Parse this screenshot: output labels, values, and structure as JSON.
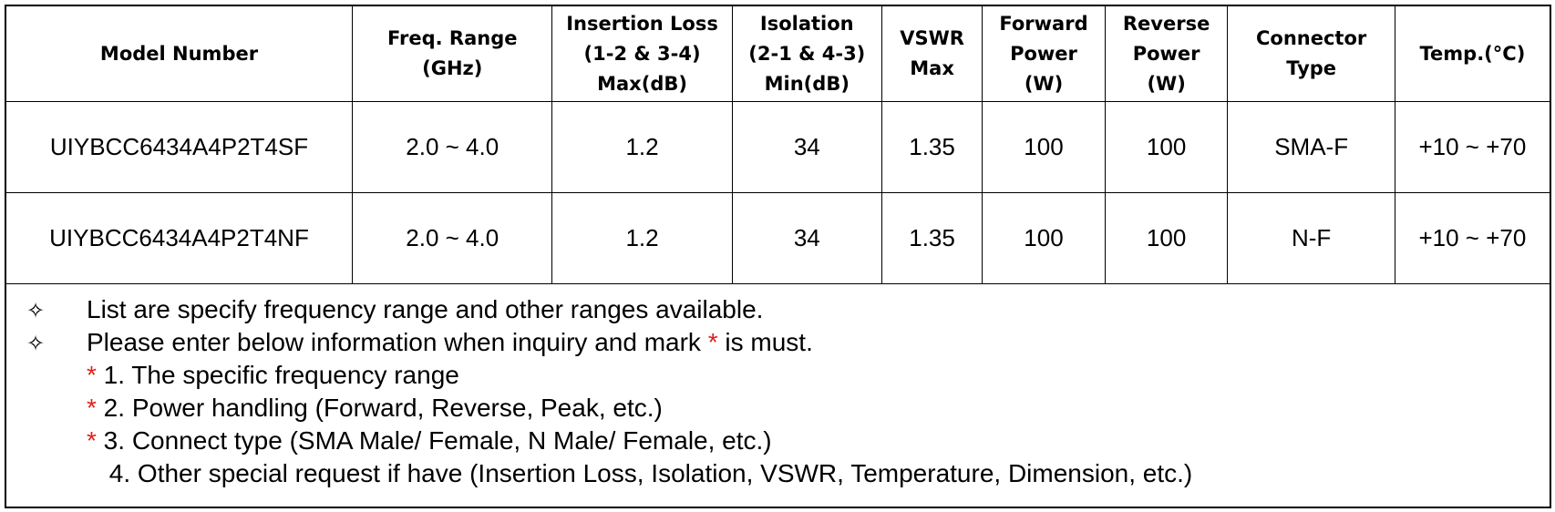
{
  "table": {
    "headers": [
      [
        "Model Number"
      ],
      [
        "Freq. Range",
        "(GHz)"
      ],
      [
        "Insertion Loss",
        "(1-2 & 3-4)",
        "Max(dB)"
      ],
      [
        "Isolation",
        "(2-1 & 4-3)",
        "Min(dB)"
      ],
      [
        "VSWR",
        "Max"
      ],
      [
        "Forward",
        "Power",
        "(W)"
      ],
      [
        "Reverse",
        "Power",
        "(W)"
      ],
      [
        "Connector",
        "Type"
      ],
      [
        "Temp.(°C)"
      ]
    ],
    "rows": [
      [
        "UIYBCC6434A4P2T4SF",
        "2.0 ~ 4.0",
        "1.2",
        "34",
        "1.35",
        "100",
        "100",
        "SMA-F",
        "+10 ~ +70"
      ],
      [
        "UIYBCC6434A4P2T4NF",
        "2.0 ~ 4.0",
        "1.2",
        "34",
        "1.35",
        "100",
        "100",
        "N-F",
        "+10 ~ +70"
      ]
    ]
  },
  "notes": {
    "bullet_glyph": "✧",
    "bullet1": "List are specify frequency range and other ranges available.",
    "bullet2_before": "Please enter below information when inquiry and mark ",
    "bullet2_star": "*",
    "bullet2_after": " is must.",
    "items": [
      {
        "star": "*",
        "text": " 1. The specific frequency range"
      },
      {
        "star": "*",
        "text": " 2. Power handling (Forward, Reverse, Peak, etc.)"
      },
      {
        "star": "*",
        "text": " 3. Connect type (SMA Male/ Female, N Male/ Female, etc.)"
      },
      {
        "star": "",
        "text": " 4. Other special request if have (Insertion Loss, Isolation, VSWR, Temperature, Dimension, etc.)"
      }
    ]
  },
  "colors": {
    "star": "#e0201b",
    "border": "#000000"
  }
}
